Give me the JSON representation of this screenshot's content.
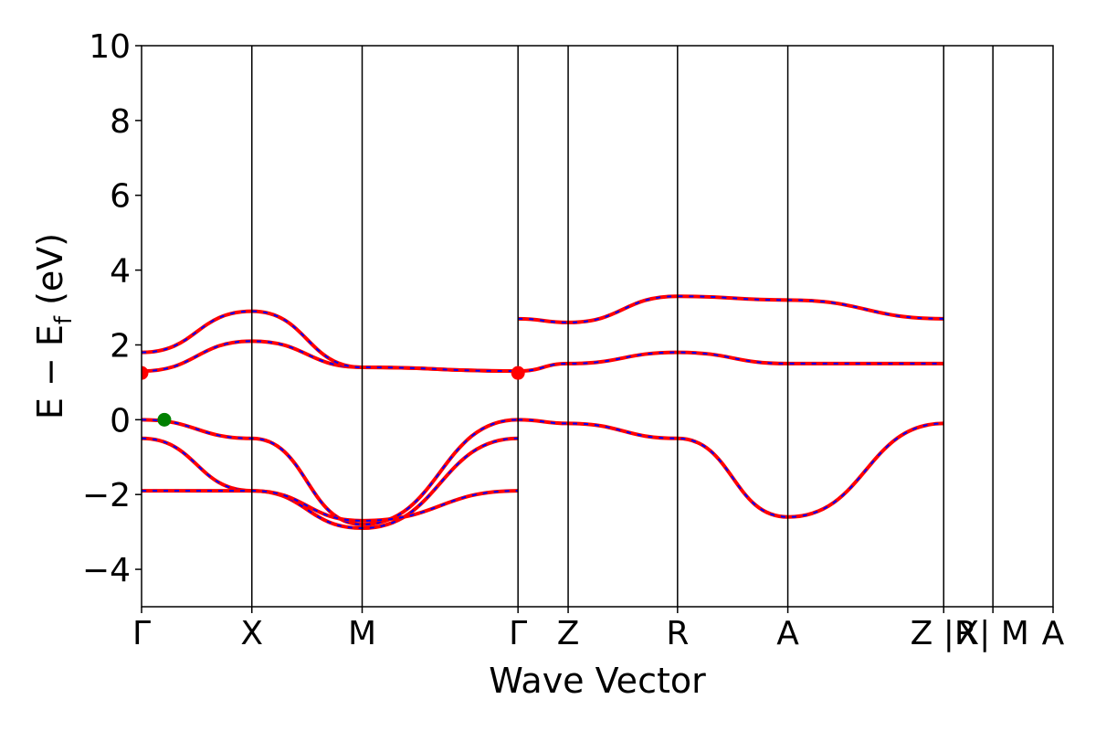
{
  "chart_data": {
    "type": "line",
    "title": "",
    "xlabel": "Wave Vector",
    "ylabel": "E − E",
    "ylabel_subscript": "f",
    "ylabel_unit": "(eV)",
    "ylim": [
      -5,
      10
    ],
    "yticks": [
      10,
      8,
      6,
      4,
      2,
      0,
      -2,
      -4
    ],
    "ytick_labels": [
      "10",
      "8",
      "6",
      "4",
      "2",
      "0",
      "−2",
      "−4"
    ],
    "xlim": [
      0,
      1
    ],
    "high_symmetry_points": [
      {
        "label": "Γ",
        "x": 0.0
      },
      {
        "label": "X",
        "x": 0.121
      },
      {
        "label": "M",
        "x": 0.242
      },
      {
        "label": "Γ",
        "x": 0.413
      },
      {
        "label": "Z",
        "x": 0.468
      },
      {
        "label": "R",
        "x": 0.588
      },
      {
        "label": "A",
        "x": 0.709
      },
      {
        "label": "Z |R",
        "x": 0.88
      },
      {
        "label": "X| M",
        "x": 0.934
      },
      {
        "label": "A",
        "x": 1.0
      }
    ],
    "vertical_lines_x": [
      0.121,
      0.242,
      0.413,
      0.468,
      0.588,
      0.709,
      0.88,
      0.934
    ],
    "colors": {
      "dft_bands": "#ff0000",
      "fit_bands": "#0000ff",
      "vbm_marker": "#008000",
      "cbm_marker": "#ff0000",
      "axes": "#000000"
    },
    "series": [
      {
        "name": "",
        "style": "solid-red-with-blue-dash",
        "x": [
          0,
          0.121,
          0.242,
          0.413
        ],
        "y": [
          0.0,
          -0.5,
          -2.8,
          0.0
        ]
      },
      {
        "name": "",
        "style": "solid-red-with-blue-dash",
        "x": [
          0,
          0.121,
          0.242,
          0.413
        ],
        "y": [
          -0.5,
          -1.9,
          -2.9,
          -0.5
        ]
      },
      {
        "name": "",
        "style": "solid-red-with-blue-dash",
        "x": [
          0,
          0.121,
          0.242,
          0.413
        ],
        "y": [
          -1.9,
          -1.9,
          -2.7,
          -1.9
        ]
      },
      {
        "name": "",
        "style": "solid-red-with-blue-dash",
        "x": [
          0,
          0.121,
          0.242,
          0.413
        ],
        "y": [
          1.3,
          2.1,
          1.4,
          1.3
        ]
      },
      {
        "name": "",
        "style": "solid-red-with-blue-dash",
        "x": [
          0,
          0.121,
          0.242,
          0.413
        ],
        "y": [
          1.8,
          2.9,
          1.4,
          1.3
        ]
      },
      {
        "name": "",
        "style": "solid-red-with-blue-dash",
        "x": [
          0.413,
          0.468,
          0.588,
          0.709,
          0.88
        ],
        "y": [
          0.0,
          -0.1,
          -0.5,
          -2.6,
          -0.1
        ]
      },
      {
        "name": "",
        "style": "solid-red-with-blue-dash",
        "x": [
          0.413,
          0.468,
          0.588,
          0.709,
          0.88
        ],
        "y": [
          1.3,
          1.5,
          1.8,
          1.5,
          1.5
        ]
      },
      {
        "name": "",
        "style": "solid-red-with-blue-dash",
        "x": [
          0.413,
          0.468,
          0.588,
          0.709,
          0.88
        ],
        "y": [
          2.7,
          2.6,
          3.3,
          3.2,
          2.7
        ]
      }
    ],
    "markers": [
      {
        "kind": "VBM",
        "x": 0.025,
        "y": 0.0
      },
      {
        "kind": "CBM",
        "x": 0.0,
        "y": 1.25
      },
      {
        "kind": "CBM",
        "x": 0.413,
        "y": 1.25
      }
    ]
  }
}
